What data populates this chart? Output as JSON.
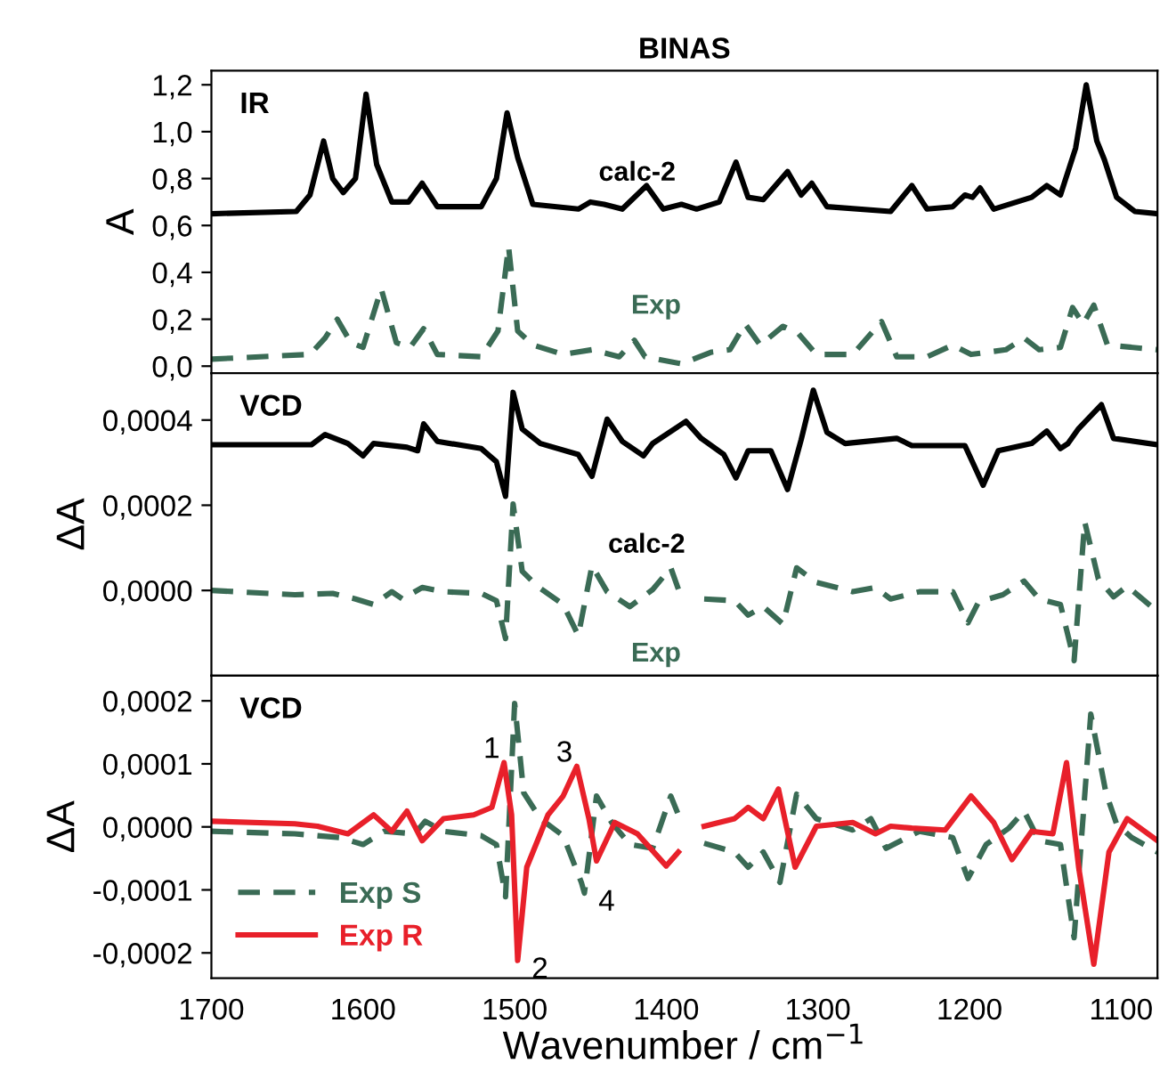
{
  "chart_data": [
    {
      "type": "line",
      "title": "BINAS",
      "ylabel": "A",
      "annotations": [
        "IR"
      ],
      "xlim": [
        1700,
        1076
      ],
      "ylim": [
        -0.03,
        1.26
      ],
      "tick_labels": "y",
      "grid": false,
      "legend": false,
      "yticks": [
        {
          "value": 0.0,
          "label": "0,0"
        },
        {
          "value": 0.2,
          "label": "0,2"
        },
        {
          "value": 0.4,
          "label": "0,4"
        },
        {
          "value": 0.6,
          "label": "0,6"
        },
        {
          "value": 0.8,
          "label": "0,8"
        },
        {
          "value": 1.0,
          "label": "1,0"
        },
        {
          "value": 1.2,
          "label": "1,2"
        }
      ],
      "series": [
        {
          "name": "calc-2",
          "color": "#000000",
          "line_style": "solid",
          "x": [
            1700,
            1644,
            1635,
            1626,
            1620,
            1613,
            1605,
            1598,
            1591,
            1581,
            1570,
            1561,
            1551,
            1522,
            1512,
            1505,
            1498,
            1488,
            1458,
            1450,
            1441,
            1429,
            1413,
            1402,
            1390,
            1380,
            1365,
            1354,
            1346,
            1336,
            1320,
            1311,
            1304,
            1294,
            1252,
            1238,
            1228,
            1211,
            1203,
            1198,
            1193,
            1184,
            1159,
            1149,
            1140,
            1130,
            1123,
            1116,
            1111,
            1103,
            1091,
            1076
          ],
          "values": [
            0.65,
            0.66,
            0.73,
            0.96,
            0.8,
            0.74,
            0.8,
            1.16,
            0.86,
            0.7,
            0.7,
            0.78,
            0.68,
            0.68,
            0.8,
            1.08,
            0.89,
            0.69,
            0.67,
            0.7,
            0.69,
            0.67,
            0.77,
            0.67,
            0.69,
            0.67,
            0.7,
            0.87,
            0.72,
            0.71,
            0.83,
            0.73,
            0.78,
            0.68,
            0.66,
            0.77,
            0.67,
            0.68,
            0.73,
            0.72,
            0.76,
            0.67,
            0.72,
            0.77,
            0.73,
            0.93,
            1.2,
            0.96,
            0.88,
            0.72,
            0.66,
            0.65
          ]
        },
        {
          "name": "Exp",
          "color": "#3a6b55",
          "line_style": "dashed",
          "x": [
            1700,
            1635,
            1625,
            1617,
            1608,
            1600,
            1588,
            1578,
            1569,
            1560,
            1551,
            1522,
            1511,
            1504,
            1498,
            1488,
            1468,
            1449,
            1431,
            1421,
            1414,
            1390,
            1370,
            1358,
            1348,
            1338,
            1323,
            1313,
            1301,
            1277,
            1258,
            1248,
            1228,
            1211,
            1199,
            1176,
            1164,
            1154,
            1140,
            1132,
            1125,
            1118,
            1109,
            1076
          ],
          "values": [
            0.03,
            0.05,
            0.12,
            0.2,
            0.1,
            0.08,
            0.33,
            0.1,
            0.08,
            0.16,
            0.05,
            0.04,
            0.15,
            0.51,
            0.15,
            0.09,
            0.05,
            0.07,
            0.04,
            0.11,
            0.04,
            0.01,
            0.06,
            0.07,
            0.18,
            0.09,
            0.17,
            0.14,
            0.05,
            0.05,
            0.19,
            0.04,
            0.04,
            0.09,
            0.05,
            0.07,
            0.12,
            0.07,
            0.08,
            0.25,
            0.18,
            0.26,
            0.09,
            0.07
          ]
        }
      ]
    },
    {
      "type": "line",
      "ylabel": "ΔA",
      "annotations": [
        "VCD"
      ],
      "xlim": [
        1700,
        1076
      ],
      "ylim": [
        -0.0002,
        0.00051
      ],
      "tick_labels": "y",
      "grid": false,
      "legend": false,
      "yticks": [
        {
          "value": 0.0,
          "label": "0,0000"
        },
        {
          "value": 0.0002,
          "label": "0,0002"
        },
        {
          "value": 0.0004,
          "label": "0,0004"
        }
      ],
      "series": [
        {
          "name": "calc-2",
          "color": "#000000",
          "line_style": "solid",
          "x": [
            1700,
            1634,
            1625,
            1610,
            1600,
            1593,
            1571,
            1564,
            1560,
            1551,
            1522,
            1512,
            1506,
            1501,
            1495,
            1483,
            1458,
            1449,
            1439,
            1429,
            1415,
            1409,
            1387,
            1377,
            1362,
            1354,
            1346,
            1331,
            1320,
            1311,
            1303,
            1294,
            1282,
            1248,
            1238,
            1203,
            1191,
            1181,
            1159,
            1149,
            1140,
            1135,
            1128,
            1113,
            1105,
            1076
          ],
          "values": [
            0.000342,
            0.000342,
            0.000366,
            0.000345,
            0.000316,
            0.000345,
            0.000336,
            0.000328,
            0.000391,
            0.00035,
            0.000333,
            0.000302,
            0.000221,
            0.000465,
            0.000379,
            0.000345,
            0.000319,
            0.000268,
            0.000402,
            0.00035,
            0.000316,
            0.000345,
            0.000397,
            0.000357,
            0.000319,
            0.000264,
            0.000328,
            0.000328,
            0.000237,
            0.000354,
            0.00047,
            0.000371,
            0.000345,
            0.000357,
            0.00034,
            0.00034,
            0.000247,
            0.000328,
            0.000345,
            0.000374,
            0.000333,
            0.000345,
            0.00038,
            0.000436,
            0.000357,
            0.000342
          ]
        },
        {
          "name": "Exp",
          "color": "#3a6b55",
          "line_style": "dashed",
          "x": [
            1700,
            1645,
            1620,
            1605,
            1593,
            1581,
            1574,
            1561,
            1547,
            1522,
            1512,
            1506,
            1501,
            1495,
            1485,
            1468,
            1458,
            1449,
            1439,
            1424,
            1409,
            1397,
            1391,
            1384,
            1375,
            1355,
            1346,
            1336,
            1323,
            1314,
            1301,
            1277,
            1262,
            1252,
            1233,
            1211,
            1201,
            1194,
            1178,
            1164,
            1154,
            1140,
            1131,
            1124,
            1115,
            1105,
            1096,
            1076
          ],
          "values": [
            0.0,
            -1e-05,
            -7e-06,
            -2e-05,
            -3.3e-05,
            -3e-06,
            -2e-05,
            7e-06,
            -3e-06,
            -7e-06,
            -2.4e-05,
            -0.000113,
            0.000203,
            4.5e-05,
            1e-05,
            -3.3e-05,
            -0.000106,
            5.8e-05,
            -3e-06,
            -3.8e-05,
            2e-06,
            5.3e-05,
            -7e-06,
            null,
            -2e-05,
            -2.4e-05,
            -5.8e-05,
            -3.8e-05,
            -7.9e-05,
            5.3e-05,
            1.9e-05,
            -3e-06,
            7e-06,
            -2e-05,
            -3e-06,
            -3e-06,
            -7.6e-05,
            -2.7e-05,
            -1e-05,
            2.2e-05,
            -2e-05,
            -3.3e-05,
            -0.000165,
            0.000161,
            2.7e-05,
            -1.5e-05,
            1e-05,
            -5e-05
          ]
        }
      ]
    },
    {
      "type": "line",
      "ylabel": "ΔA",
      "xlabel": "Wavenumber / cm$^{−1}$",
      "xlim": [
        1700,
        1076
      ],
      "ylim": [
        -0.00024,
        0.00024
      ],
      "grid": false,
      "legend": "bottom left",
      "annotations": [
        "VCD",
        {
          "text": "1",
          "x": 1507,
          "y": 0.000102
        },
        {
          "text": "2",
          "x": 1498,
          "y": -0.000212
        },
        {
          "text": "3",
          "x": 1459,
          "y": 9.6e-05
        },
        {
          "text": "4",
          "x": 1454,
          "y": -0.000105
        }
      ],
      "xticks": [
        1700,
        1600,
        1500,
        1400,
        1300,
        1200,
        1100
      ],
      "yticks": [
        {
          "value": -0.0002,
          "label": "-0,0002"
        },
        {
          "value": -0.0001,
          "label": "-0,0001"
        },
        {
          "value": 0.0,
          "label": "0,0000"
        },
        {
          "value": 0.0001,
          "label": "0,0001"
        },
        {
          "value": 0.0002,
          "label": "0,0002"
        }
      ],
      "series": [
        {
          "name": "Exp S",
          "color": "#3a6b55",
          "line_style": "dashed",
          "x": [
            1700,
            1645,
            1615,
            1600,
            1586,
            1566,
            1559,
            1547,
            1522,
            1512,
            1506,
            1500,
            1494,
            1483,
            1468,
            1456,
            1454,
            1446,
            1436,
            1424,
            1409,
            1397,
            1391,
            1384,
            1375,
            1355,
            1346,
            1336,
            1325,
            1314,
            1301,
            1277,
            1265,
            1255,
            1233,
            1211,
            1201,
            1189,
            1174,
            1164,
            1154,
            1140,
            1131,
            1120,
            1110,
            1103,
            1093,
            1076
          ],
          "values": [
            -7e-06,
            -1.1e-05,
            -1.7e-05,
            -2.8e-05,
            -7e-06,
            -1.1e-05,
            9e-06,
            -7e-06,
            -1.4e-05,
            -2.8e-05,
            -0.000111,
            0.000196,
            5.4e-05,
            1.3e-05,
            -1.4e-05,
            -8.8e-05,
            -0.000105,
            4.9e-05,
            7e-06,
            -2.8e-05,
            -3.4e-05,
            4.9e-05,
            1.3e-05,
            null,
            -2.6e-05,
            -4e-05,
            -6.4e-05,
            -4e-05,
            -8.8e-05,
            5.2e-05,
            1.3e-05,
            -5e-06,
            1.3e-05,
            -3.4e-05,
            -7e-06,
            -1.7e-05,
            -8.2e-05,
            -2.8e-05,
            -2e-06,
            2.5e-05,
            -2.2e-05,
            -2.8e-05,
            -0.000176,
            0.000179,
            5.4e-05,
            5e-06,
            -1.7e-05,
            -4e-05
          ]
        },
        {
          "name": "Exp R",
          "color": "#e8202a",
          "line_style": "solid",
          "x": [
            1700,
            1645,
            1630,
            1610,
            1593,
            1581,
            1571,
            1561,
            1547,
            1527,
            1515,
            1507,
            1502,
            1498,
            1492,
            1478,
            1468,
            1459,
            1451,
            1446,
            1434,
            1419,
            1400,
            1392,
            1384,
            1375,
            1355,
            1346,
            1336,
            1326,
            1315,
            1301,
            1277,
            1262,
            1252,
            1238,
            1216,
            1199,
            1184,
            1172,
            1159,
            1145,
            1136,
            1128,
            1118,
            1108,
            1096,
            1076
          ],
          "values": [
            9e-06,
            5e-06,
            1e-06,
            -1.1e-05,
            1.9e-05,
            -7e-06,
            2.5e-05,
            -2.2e-05,
            1.3e-05,
            1.9e-05,
            3.1e-05,
            0.000102,
            1.9e-05,
            -0.000212,
            -6.4e-05,
            1.9e-05,
            4.9e-05,
            9.6e-05,
            1.3e-05,
            -5.4e-05,
            7e-06,
            -1.1e-05,
            -6.2e-05,
            -4e-05,
            null,
            1e-06,
            1.3e-05,
            3.1e-05,
            1.3e-05,
            6e-05,
            -6.4e-05,
            1e-06,
            7e-06,
            -1.1e-05,
            1e-06,
            -2e-06,
            -5e-06,
            4.9e-05,
            7e-06,
            -5.2e-05,
            -7e-06,
            -1.1e-05,
            0.000102,
            -6.4e-05,
            -0.000218,
            -4e-05,
            1.3e-05,
            -2.2e-05
          ]
        }
      ]
    }
  ]
}
